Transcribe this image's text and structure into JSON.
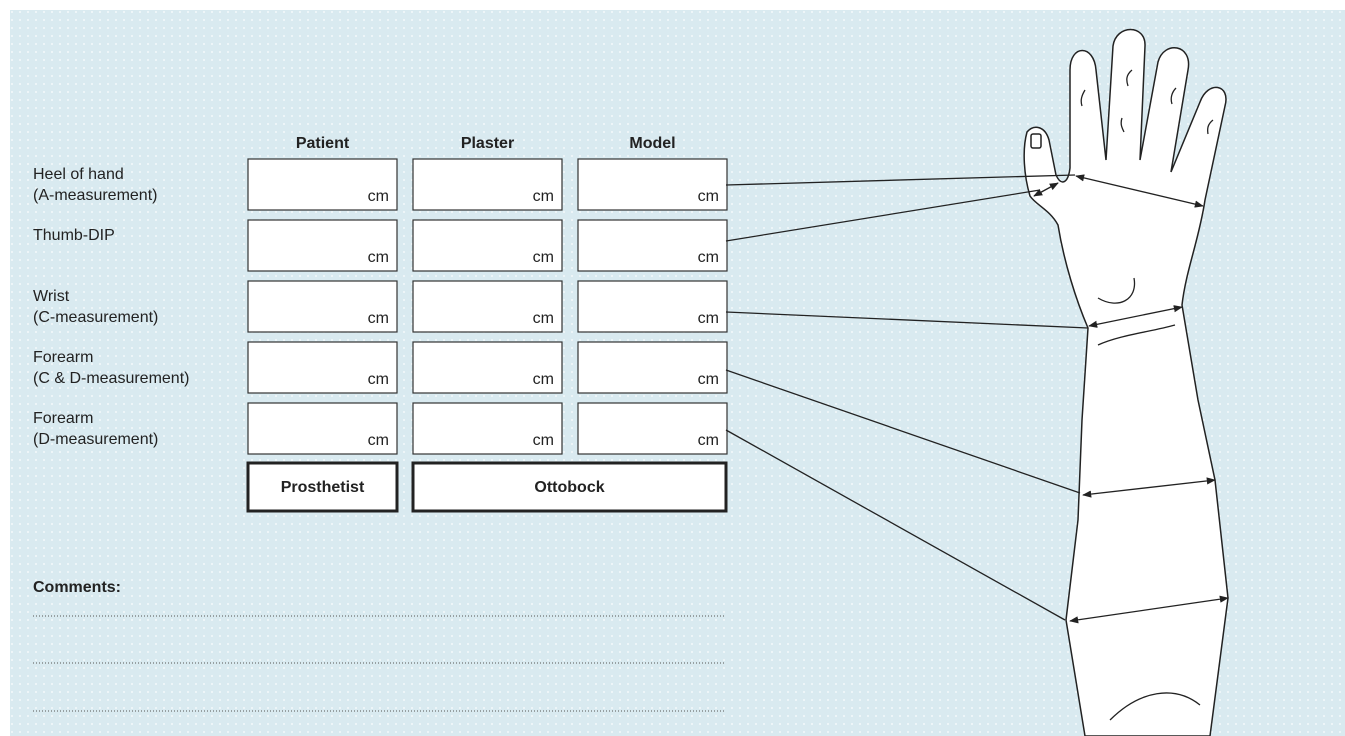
{
  "table": {
    "columns": [
      "Patient",
      "Plaster",
      "Model"
    ],
    "rows": [
      {
        "label": [
          "Heel of hand",
          "(A-measurement)"
        ],
        "cells": [
          "cm",
          "cm",
          "cm"
        ]
      },
      {
        "label": [
          "Thumb-DIP"
        ],
        "cells": [
          "cm",
          "cm",
          "cm"
        ]
      },
      {
        "label": [
          "Wrist",
          "(C-measurement)"
        ],
        "cells": [
          "cm",
          "cm",
          "cm"
        ]
      },
      {
        "label": [
          "Forearm",
          "(C & D-measurement)"
        ],
        "cells": [
          "cm",
          "cm",
          "cm"
        ]
      },
      {
        "label": [
          "Forearm",
          "(D-measurement)"
        ],
        "cells": [
          "cm",
          "cm",
          "cm"
        ]
      }
    ],
    "footer": [
      "Prosthetist",
      "Ottobock"
    ]
  },
  "comments": {
    "label": "Comments:"
  }
}
